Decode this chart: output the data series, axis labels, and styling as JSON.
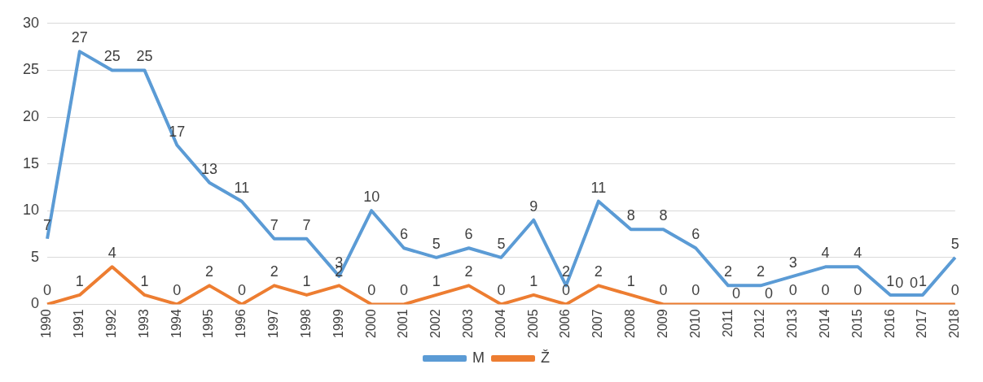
{
  "chart_data": {
    "type": "line",
    "categories": [
      "1990",
      "1991",
      "1992",
      "1993",
      "1994",
      "1995",
      "1996",
      "1997",
      "1998",
      "1999",
      "2000",
      "2001",
      "2002",
      "2003",
      "2004",
      "2005",
      "2006",
      "2007",
      "2008",
      "2009",
      "2010",
      "2011",
      "2012",
      "2013",
      "2014",
      "2015",
      "2016",
      "2017",
      "2018"
    ],
    "series": [
      {
        "name": "M",
        "color": "#5b9bd5",
        "values": [
          7,
          27,
          25,
          25,
          17,
          13,
          11,
          7,
          7,
          3,
          10,
          6,
          5,
          6,
          5,
          9,
          2,
          11,
          8,
          8,
          6,
          2,
          2,
          3,
          4,
          4,
          1,
          1,
          5
        ]
      },
      {
        "name": "Ž",
        "color": "#ed7d31",
        "values": [
          0,
          1,
          4,
          1,
          0,
          2,
          0,
          2,
          1,
          2,
          0,
          0,
          1,
          2,
          0,
          1,
          0,
          2,
          1,
          0,
          0,
          0,
          0,
          0,
          0,
          0,
          0,
          0,
          0
        ]
      }
    ],
    "ylim": [
      0,
      30
    ],
    "yticks": [
      0,
      5,
      10,
      15,
      20,
      25,
      30
    ],
    "grid": "y",
    "legend": "bottom",
    "marker": "none",
    "line_style": "solid",
    "data_labels": true
  }
}
